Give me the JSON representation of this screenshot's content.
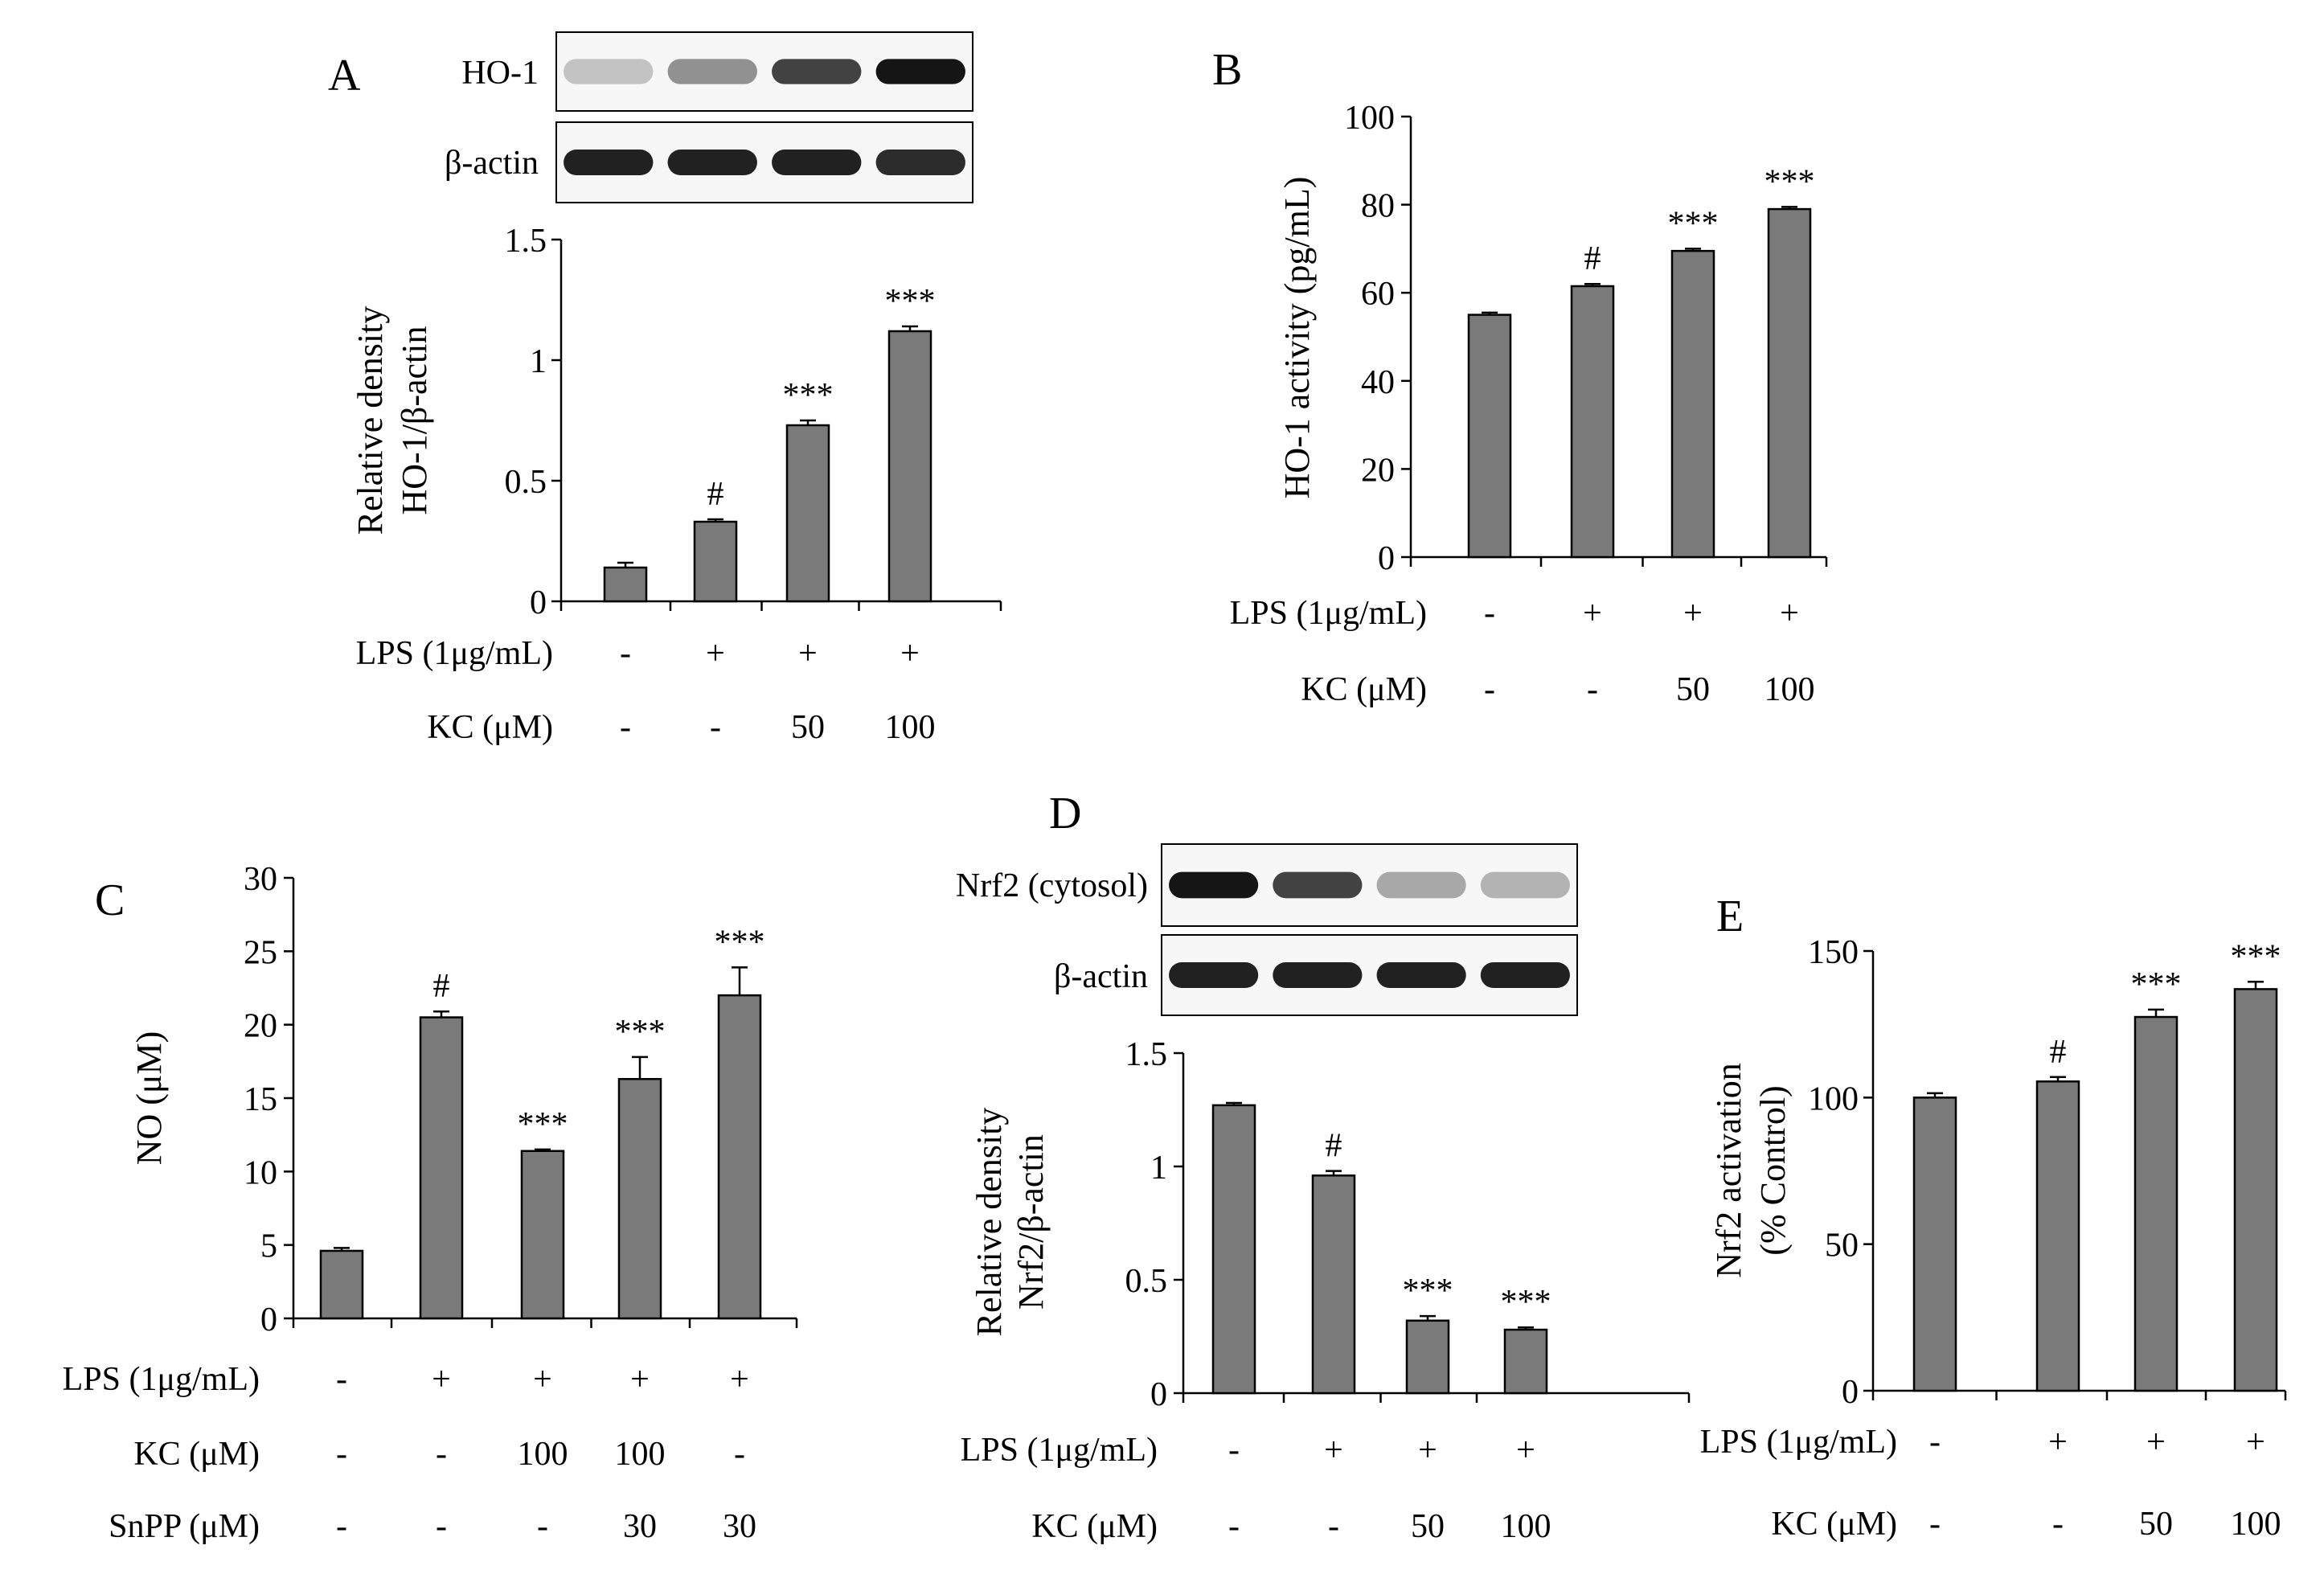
{
  "chart_data": [
    {
      "panel": "A",
      "type": "bar",
      "categories": [
        "1",
        "2",
        "3",
        "4"
      ],
      "values": [
        0.14,
        0.33,
        0.73,
        1.12
      ],
      "errors": [
        0.02,
        0.01,
        0.02,
        0.02
      ],
      "significance": [
        "",
        "#",
        "***",
        "***"
      ],
      "ylabel": [
        "Relative  density",
        "HO-1/β-actin"
      ],
      "ylim": [
        0,
        1.5
      ],
      "yticks": [
        0,
        0.5,
        1,
        1.5
      ],
      "ytick_labels": [
        "0",
        "0.5",
        "1",
        "1.5"
      ],
      "bar_color": "#7a7a7a",
      "conditions": [
        {
          "label": "LPS (1μg/mL)",
          "values": [
            "-",
            "+",
            "+",
            "+"
          ]
        },
        {
          "label": "KC (μM)",
          "values": [
            "-",
            "-",
            "50",
            "100"
          ]
        }
      ],
      "blots": [
        {
          "label": "HO-1",
          "intensity": [
            0.18,
            0.4,
            0.75,
            0.95
          ]
        },
        {
          "label": "β-actin",
          "intensity": [
            0.9,
            0.9,
            0.9,
            0.85
          ]
        }
      ]
    },
    {
      "panel": "B",
      "type": "bar",
      "categories": [
        "1",
        "2",
        "3",
        "4"
      ],
      "values": [
        55,
        61.5,
        69.5,
        79
      ],
      "errors": [
        0.5,
        0.5,
        0.5,
        0.5
      ],
      "significance": [
        "",
        "#",
        "***",
        "***"
      ],
      "ylabel": [
        "HO-1 activity  (pg/mL)"
      ],
      "ylim": [
        0,
        100
      ],
      "yticks": [
        0,
        20,
        40,
        60,
        80,
        100
      ],
      "ytick_labels": [
        "0",
        "20",
        "40",
        "60",
        "80",
        "100"
      ],
      "bar_color": "#7a7a7a",
      "conditions": [
        {
          "label": "LPS (1μg/mL)",
          "values": [
            "-",
            "+",
            "+",
            "+"
          ]
        },
        {
          "label": "KC (μM)",
          "values": [
            "-",
            "-",
            "50",
            "100"
          ]
        }
      ],
      "blots": []
    },
    {
      "panel": "C",
      "type": "bar",
      "categories": [
        "1",
        "2",
        "3",
        "4",
        "5"
      ],
      "values": [
        4.6,
        20.5,
        11.4,
        16.3,
        22
      ],
      "errors": [
        0.2,
        0.4,
        0.1,
        1.5,
        1.9
      ],
      "significance": [
        "",
        "#",
        "***",
        "***",
        "***"
      ],
      "ylabel": [
        "NO (μM)"
      ],
      "ylim": [
        0,
        30
      ],
      "yticks": [
        0,
        5,
        10,
        15,
        20,
        25,
        30
      ],
      "ytick_labels": [
        "0",
        "5",
        "10",
        "15",
        "20",
        "25",
        "30"
      ],
      "bar_color": "#7a7a7a",
      "conditions": [
        {
          "label": "LPS (1μg/mL)",
          "values": [
            "-",
            "+",
            "+",
            "+",
            "+"
          ]
        },
        {
          "label": "KC (μM)",
          "values": [
            "-",
            "-",
            "100",
            "100",
            "-"
          ]
        },
        {
          "label": "SnPP (μM)",
          "values": [
            "-",
            "-",
            "-",
            "30",
            "30"
          ]
        }
      ],
      "blots": []
    },
    {
      "panel": "D",
      "type": "bar",
      "categories": [
        "1",
        "2",
        "3",
        "4"
      ],
      "values": [
        1.27,
        0.96,
        0.32,
        0.28
      ],
      "errors": [
        0.01,
        0.02,
        0.02,
        0.01
      ],
      "significance": [
        "",
        "#",
        "***",
        "***"
      ],
      "ylabel": [
        "Relative  density",
        "Nrf2/β-actin"
      ],
      "ylim": [
        0,
        1.5
      ],
      "yticks": [
        0,
        0.5,
        1,
        1.5
      ],
      "ytick_labels": [
        "0",
        "0.5",
        "1",
        "1.5"
      ],
      "bar_color": "#7a7a7a",
      "conditions": [
        {
          "label": "LPS (1μg/mL)",
          "values": [
            "-",
            "+",
            "+",
            "+"
          ]
        },
        {
          "label": "KC (μM)",
          "values": [
            "-",
            "-",
            "50",
            "100"
          ]
        }
      ],
      "blots": [
        {
          "label": "Nrf2 (cytosol)",
          "intensity": [
            0.95,
            0.75,
            0.3,
            0.25
          ]
        },
        {
          "label": "β-actin",
          "intensity": [
            0.9,
            0.9,
            0.9,
            0.9
          ]
        }
      ]
    },
    {
      "panel": "E",
      "type": "bar",
      "categories": [
        "1",
        "2",
        "3",
        "4"
      ],
      "values": [
        100,
        105.5,
        127.5,
        137
      ],
      "errors": [
        1.5,
        1.5,
        2.5,
        2.5
      ],
      "significance": [
        "",
        "#",
        "***",
        "***"
      ],
      "ylabel": [
        "Nrf2 activation",
        "(% Control)"
      ],
      "ylim": [
        0,
        150
      ],
      "yticks": [
        0,
        50,
        100,
        150
      ],
      "ytick_labels": [
        "0",
        "50",
        "100",
        "150"
      ],
      "bar_color": "#7a7a7a",
      "conditions": [
        {
          "label": "LPS (1μg/mL)",
          "values": [
            "-",
            "+",
            "+",
            "+"
          ]
        },
        {
          "label": "KC (μM)",
          "values": [
            "-",
            "-",
            "50",
            "100"
          ]
        }
      ],
      "blots": []
    }
  ]
}
